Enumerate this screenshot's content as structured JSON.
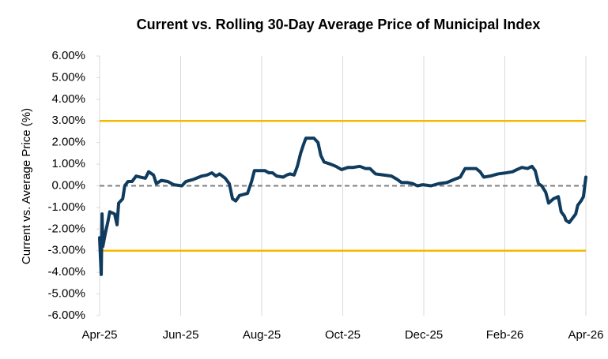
{
  "chart_data": {
    "type": "line",
    "title": "Current vs. Rolling 30-Day Average Price of Municipal Index",
    "y_label": "Current vs. Average Price (%)",
    "color": "#0e3b5e",
    "grid": "x",
    "xlim": [
      0,
      12
    ],
    "xticks": [
      {
        "value": 0,
        "label": "Apr-25"
      },
      {
        "value": 2,
        "label": "Jun-25"
      },
      {
        "value": 4,
        "label": "Aug-25"
      },
      {
        "value": 6,
        "label": "Oct-25"
      },
      {
        "value": 8,
        "label": "Dec-25"
      },
      {
        "value": 10,
        "label": "Feb-26"
      },
      {
        "value": 12,
        "label": "Apr-26"
      }
    ],
    "ylim": [
      -6,
      6
    ],
    "yticks": [
      {
        "value": 6,
        "label": "6.00%"
      },
      {
        "value": 5,
        "label": "5.00%"
      },
      {
        "value": 4,
        "label": "4.00%"
      },
      {
        "value": 3,
        "label": "3.00%"
      },
      {
        "value": 2,
        "label": "2.00%"
      },
      {
        "value": 1,
        "label": "1.00%"
      },
      {
        "value": 0,
        "label": "0.00%"
      },
      {
        "value": -1,
        "label": "-1.00%"
      },
      {
        "value": -2,
        "label": "-2.00%"
      },
      {
        "value": -3,
        "label": "-3.00%"
      },
      {
        "value": -4,
        "label": "-4.00%"
      },
      {
        "value": -5,
        "label": "-5.00%"
      },
      {
        "value": -6,
        "label": "-6.00%"
      }
    ],
    "hlines": [
      {
        "value": 3,
        "color": "#f5b800",
        "style": "solid"
      },
      {
        "value": -3,
        "color": "#f5b800",
        "style": "solid"
      },
      {
        "value": 0,
        "color": "#7f7f7f",
        "style": "dashed"
      }
    ],
    "x": [
      0,
      0.02,
      0.04,
      0.06,
      0.08,
      0.14,
      0.2,
      0.25,
      0.37,
      0.43,
      0.47,
      0.57,
      0.62,
      0.7,
      0.8,
      0.9,
      1.01,
      1.13,
      1.21,
      1.33,
      1.4,
      1.52,
      1.68,
      1.83,
      2.03,
      2.13,
      2.32,
      2.52,
      2.65,
      2.77,
      2.87,
      2.96,
      3.1,
      3.2,
      3.28,
      3.36,
      3.45,
      3.65,
      3.75,
      3.82,
      3.92,
      4.08,
      4.18,
      4.27,
      4.37,
      4.53,
      4.62,
      4.7,
      4.8,
      4.88,
      4.96,
      5.03,
      5.09,
      5.19,
      5.29,
      5.39,
      5.46,
      5.54,
      5.7,
      5.83,
      5.97,
      6.13,
      6.26,
      6.42,
      6.56,
      6.67,
      6.81,
      7.0,
      7.2,
      7.34,
      7.45,
      7.59,
      7.73,
      7.84,
      7.98,
      8.18,
      8.37,
      8.57,
      8.76,
      8.9,
      9.02,
      9.15,
      9.29,
      9.39,
      9.48,
      9.64,
      9.83,
      10.03,
      10.19,
      10.3,
      10.42,
      10.56,
      10.67,
      10.75,
      10.83,
      10.91,
      11.01,
      11.08,
      11.2,
      11.32,
      11.39,
      11.47,
      11.51,
      11.59,
      11.67,
      11.75,
      11.8,
      11.88,
      11.94,
      11.98,
      12.0
    ],
    "values": [
      -2.4,
      -3.3,
      -4.1,
      -1.3,
      -2.8,
      -2.2,
      -1.7,
      -1.2,
      -1.3,
      -1.8,
      -0.8,
      -0.6,
      0.0,
      0.2,
      0.2,
      0.45,
      0.4,
      0.35,
      0.65,
      0.5,
      0.1,
      0.25,
      0.2,
      0.05,
      0.0,
      0.2,
      0.3,
      0.45,
      0.5,
      0.6,
      0.45,
      0.55,
      0.35,
      0.1,
      -0.6,
      -0.7,
      -0.45,
      -0.35,
      0.2,
      0.7,
      0.7,
      0.7,
      0.6,
      0.6,
      0.45,
      0.4,
      0.5,
      0.55,
      0.5,
      0.9,
      1.5,
      1.9,
      2.2,
      2.2,
      2.2,
      2.0,
      1.4,
      1.1,
      1.0,
      0.9,
      0.75,
      0.85,
      0.85,
      0.9,
      0.8,
      0.8,
      0.55,
      0.5,
      0.45,
      0.3,
      0.15,
      0.15,
      0.1,
      0.0,
      0.05,
      0.0,
      0.1,
      0.15,
      0.3,
      0.4,
      0.8,
      0.8,
      0.8,
      0.65,
      0.4,
      0.45,
      0.55,
      0.6,
      0.65,
      0.75,
      0.85,
      0.8,
      0.9,
      0.7,
      0.1,
      0.0,
      -0.3,
      -0.8,
      -0.6,
      -0.5,
      -1.2,
      -1.4,
      -1.6,
      -1.7,
      -1.5,
      -1.3,
      -0.9,
      -0.7,
      -0.5,
      0.1,
      0.4
    ]
  }
}
